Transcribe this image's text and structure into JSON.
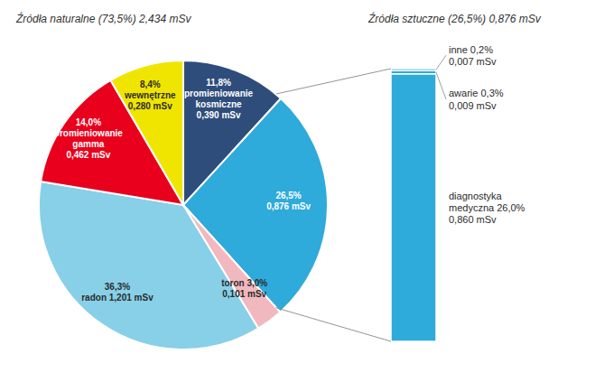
{
  "chart_data": [
    {
      "type": "pie",
      "title": "Źródła naturalne (73,5%) 2,434 mSv",
      "categories": [
        "11,8%\npromieniowanie\nkosmiczne\n0,390 mSv",
        "26,5%\n0,876 mSv",
        "toron 3,0%\n0,101 mSv",
        "36,3%\nradon 1,201 mSv",
        "14,0%\npromieniowanie\ngamma\n0,462 mSv",
        "8,4%\nwewnętrzne\n0,280 mSv"
      ],
      "values": [
        11.8,
        26.5,
        3.0,
        36.3,
        14.0,
        8.4
      ],
      "colors": [
        "#2e4d7b",
        "#2eaadb",
        "#f2b8c0",
        "#87d0e8",
        "#e8001c",
        "#f0e500"
      ]
    },
    {
      "type": "bar",
      "title": "Źródła sztuczne (26,5%) 0,876 mSv",
      "stacked": true,
      "tick_labels": false,
      "categories": [
        null
      ],
      "ylim": [
        0,
        26.5
      ],
      "series": [
        {
          "name": "diagnostyka\nmedyczna 26,0%\n0,860 mSv",
          "values": [
            26.0
          ],
          "color": "#2eaadb"
        },
        {
          "name": "awarie 0,3%\n0,009 mSv",
          "values": [
            0.3
          ],
          "color": "#2eaadb"
        },
        {
          "name": "inne 0,2%\n0,007 mSv",
          "values": [
            0.2
          ],
          "color": "#2eaadb"
        }
      ]
    }
  ]
}
